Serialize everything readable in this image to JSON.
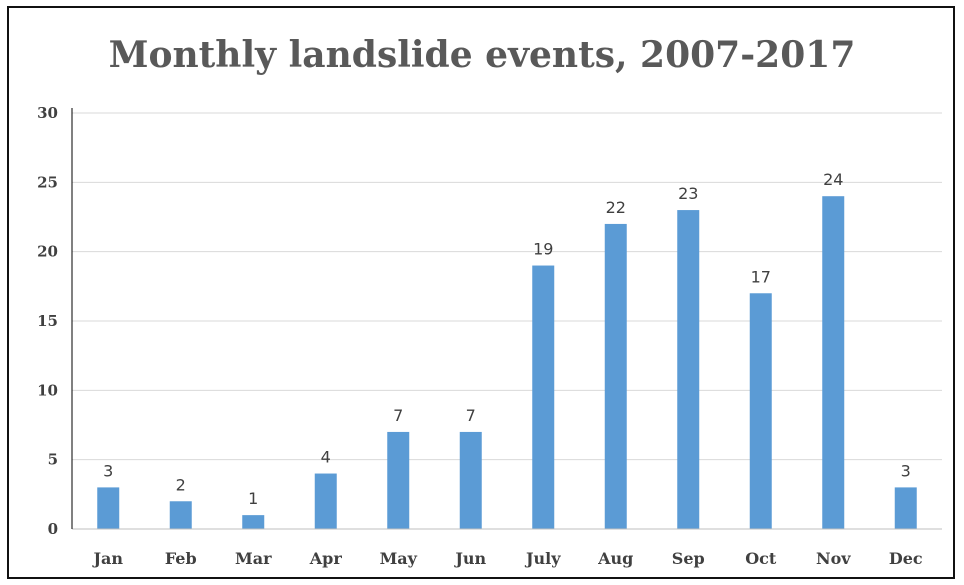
{
  "chart_data": {
    "type": "bar",
    "title": "Monthly landslide events, 2007-2017",
    "xlabel": "",
    "ylabel": "",
    "categories": [
      "Jan",
      "Feb",
      "Mar",
      "Apr",
      "May",
      "Jun",
      "July",
      "Aug",
      "Sep",
      "Oct",
      "Nov",
      "Dec"
    ],
    "values": [
      3,
      2,
      1,
      4,
      7,
      7,
      19,
      22,
      23,
      17,
      24,
      3
    ],
    "ylim": [
      0,
      30
    ],
    "yticks": [
      0,
      5,
      10,
      15,
      20,
      25,
      30
    ],
    "grid": true,
    "legend": "none",
    "data_labels": true,
    "colors": {
      "bar": "#5b9bd5",
      "grid": "#d9d9d9",
      "axis": "#bfbfbf"
    }
  }
}
